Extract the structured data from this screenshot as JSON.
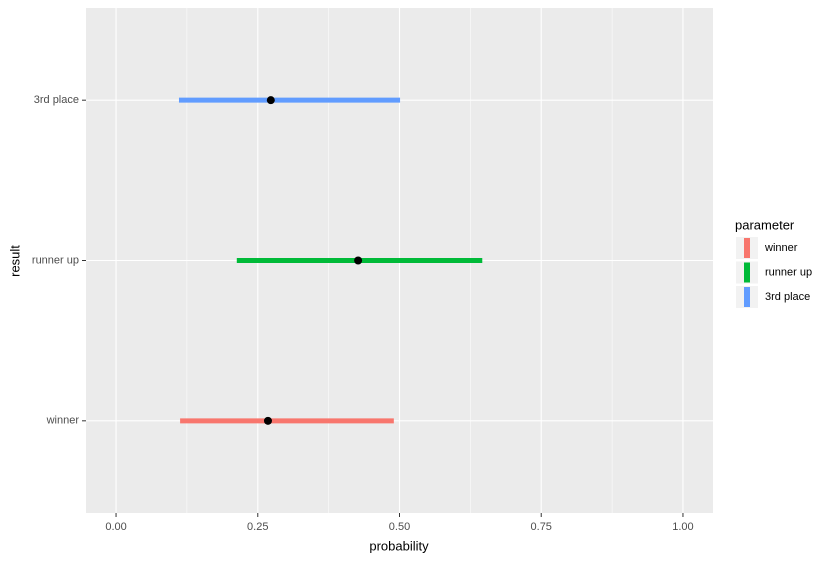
{
  "chart_data": {
    "type": "interval",
    "x_label": "probability",
    "y_label": "result",
    "categories": [
      "winner",
      "runner up",
      "3rd place"
    ],
    "series": [
      {
        "name": "winner",
        "color": "#F8766D",
        "low": 0.113,
        "high": 0.49,
        "value": 0.268
      },
      {
        "name": "runner up",
        "color": "#00BA38",
        "low": 0.213,
        "high": 0.646,
        "value": 0.427
      },
      {
        "name": "3rd place",
        "color": "#619CFF",
        "low": 0.111,
        "high": 0.501,
        "value": 0.273
      }
    ],
    "point_color": "#000000",
    "xlim": [
      -0.053,
      1.053
    ],
    "xticks": [
      {
        "value": 0,
        "label": "0.00"
      },
      {
        "value": 0.25,
        "label": "0.25"
      },
      {
        "value": 0.5,
        "label": "0.50"
      },
      {
        "value": 0.75,
        "label": "0.75"
      },
      {
        "value": 1,
        "label": "1.00"
      }
    ],
    "legend_title": "parameter",
    "legend": "right",
    "grid": true
  }
}
